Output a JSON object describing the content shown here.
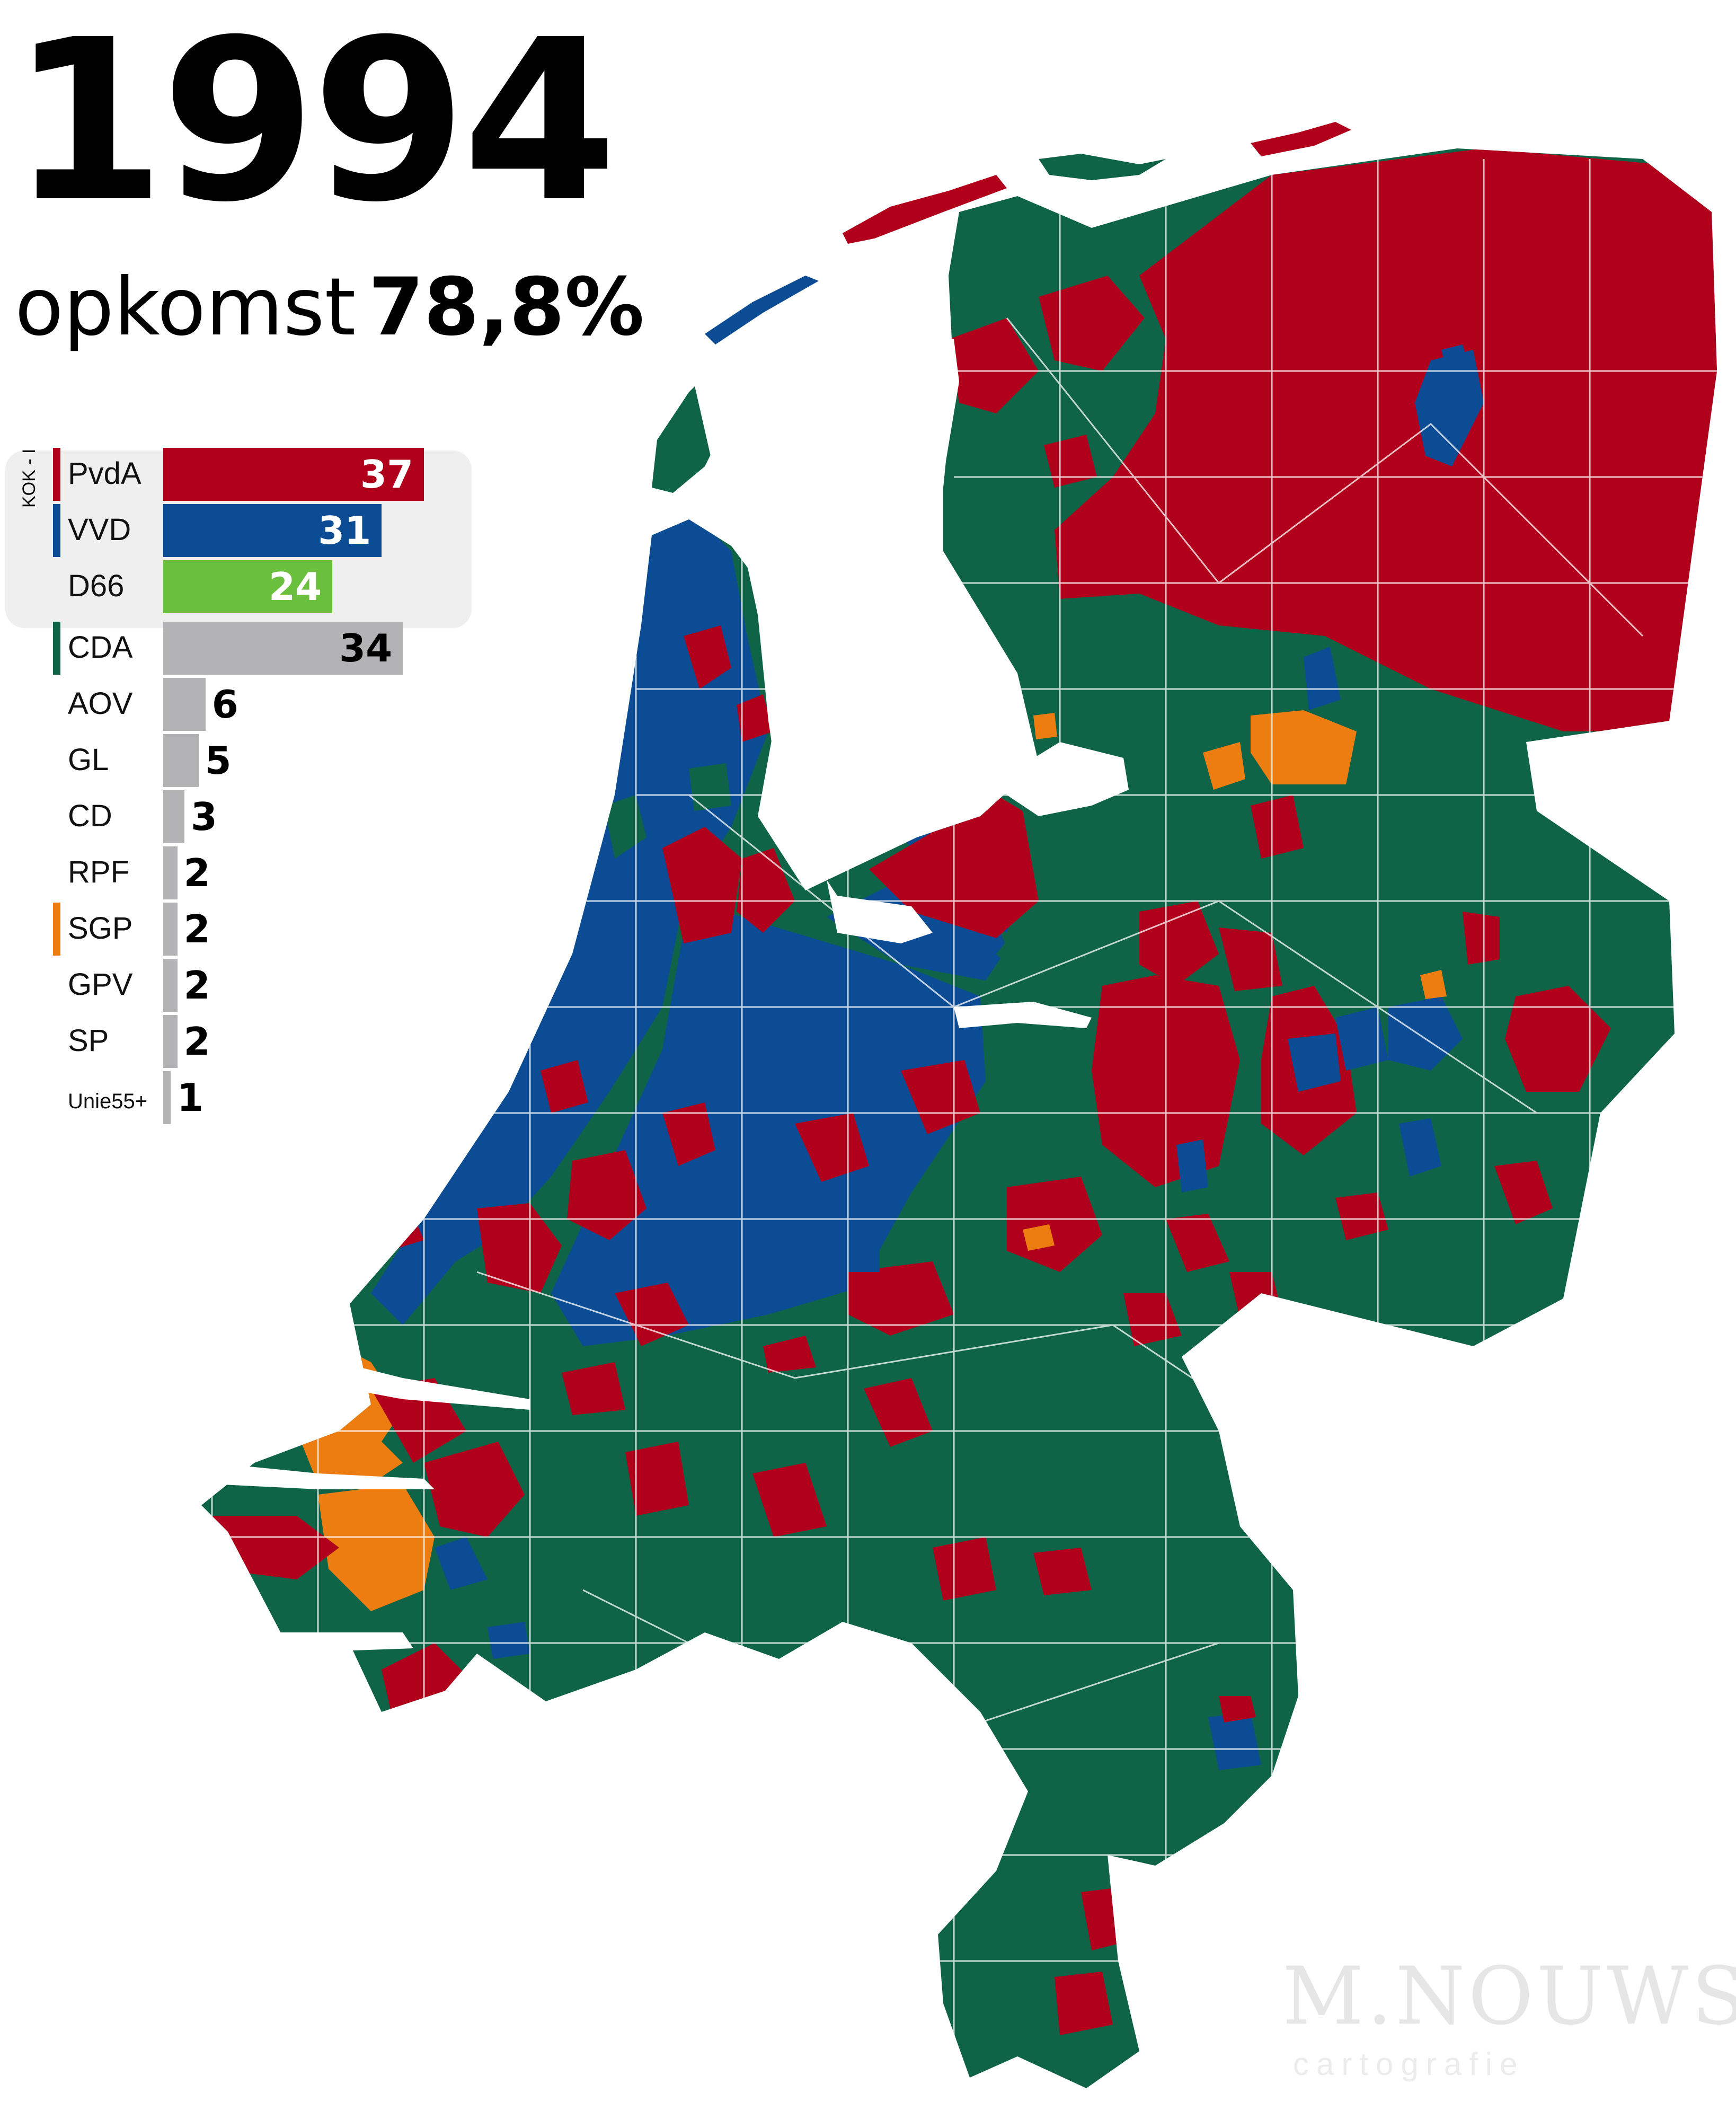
{
  "header": {
    "year": "1994",
    "turnout_label": "opkomst",
    "turnout_value": "78,8%"
  },
  "coalition_label": "KOK - I",
  "party_colors": {
    "PvdA": "#b1001c",
    "VVD": "#0b4c95",
    "D66": "#6abf3d",
    "CDA": "#0f6448",
    "SGP": "#ee7d11",
    "other": "#b3b3b5"
  },
  "chart_data": {
    "type": "bar",
    "title": "",
    "xlabel": "",
    "ylabel": "",
    "categories": [
      "PvdA",
      "VVD",
      "D66",
      "CDA",
      "AOV",
      "GL",
      "CD",
      "RPF",
      "SGP",
      "GPV",
      "SP",
      "Unie55+"
    ],
    "values": [
      37,
      31,
      24,
      34,
      6,
      5,
      3,
      2,
      2,
      2,
      2,
      1
    ],
    "coalition": [
      "PvdA",
      "VVD",
      "D66"
    ]
  },
  "parties": [
    {
      "name": "PvdA",
      "seats": "37"
    },
    {
      "name": "VVD",
      "seats": "31"
    },
    {
      "name": "D66",
      "seats": "24"
    },
    {
      "name": "CDA",
      "seats": "34"
    },
    {
      "name": "AOV",
      "seats": "6"
    },
    {
      "name": "GL",
      "seats": "5"
    },
    {
      "name": "CD",
      "seats": "3"
    },
    {
      "name": "RPF",
      "seats": "2"
    },
    {
      "name": "SGP",
      "seats": "2"
    },
    {
      "name": "GPV",
      "seats": "2"
    },
    {
      "name": "SP",
      "seats": "2"
    },
    {
      "name": "Unie55+",
      "seats": "1"
    }
  ],
  "watermark": {
    "name": "M.NOUWS",
    "sub": "cartografie"
  }
}
